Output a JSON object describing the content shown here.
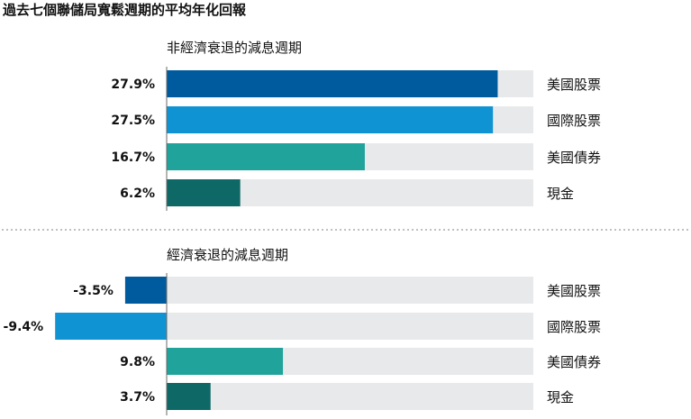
{
  "title": "過去七個聯儲局寬鬆週期的平均年化回報",
  "colors": {
    "us_equity": "#005b9e",
    "intl_equity": "#0f93d2",
    "us_bonds": "#1fa39a",
    "cash": "#0e6866",
    "track": "#e8e9ea",
    "divider": "#9a9a9a"
  },
  "chart_data": [
    {
      "type": "bar",
      "orientation": "horizontal",
      "title": "非經濟衰退的減息週期",
      "categories": [
        "美國股票",
        "國際股票",
        "美國債券",
        "現金"
      ],
      "values": [
        27.9,
        27.5,
        16.7,
        6.2
      ],
      "value_labels": [
        "27.9%",
        "27.5%",
        "16.7%",
        "6.2%"
      ],
      "xlim": [
        -14,
        31
      ],
      "grid": false
    },
    {
      "type": "bar",
      "orientation": "horizontal",
      "title": "經濟衰退的減息週期",
      "categories": [
        "美國股票",
        "國際股票",
        "美國債券",
        "現金"
      ],
      "values": [
        -3.5,
        -9.4,
        9.8,
        3.7
      ],
      "value_labels": [
        "-3.5%",
        "-9.4%",
        "9.8%",
        "3.7%"
      ],
      "xlim": [
        -14,
        31
      ],
      "grid": false
    }
  ]
}
